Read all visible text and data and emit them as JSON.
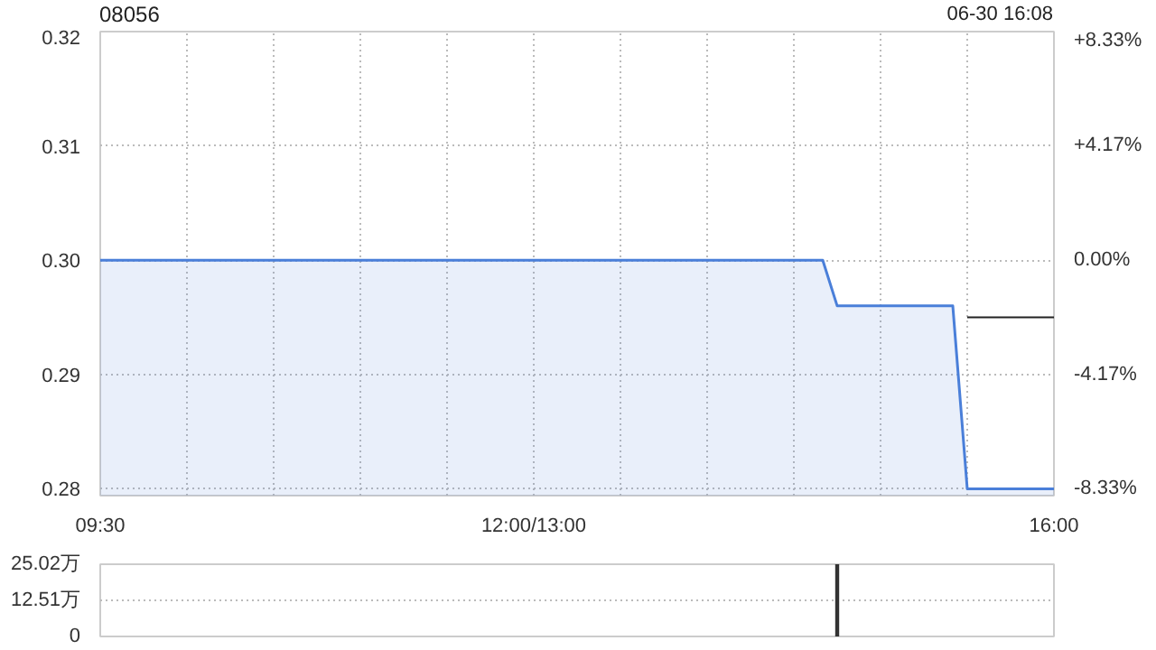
{
  "chart_data": [
    {
      "type": "area",
      "title": "08056",
      "annotations": [
        "06-30 16:08"
      ],
      "categories": [
        "09:30",
        null,
        null,
        null,
        null,
        null,
        null,
        null,
        null,
        null,
        null,
        null,
        null,
        null,
        null,
        null,
        null,
        null,
        null,
        null,
        null,
        null,
        null,
        null,
        null,
        null,
        null,
        null,
        null,
        null,
        "12:00/13:00",
        null,
        null,
        null,
        null,
        null,
        null,
        null,
        null,
        null,
        null,
        null,
        null,
        null,
        null,
        null,
        null,
        null,
        null,
        null,
        null,
        null,
        null,
        null,
        null,
        null,
        null,
        null,
        null,
        null,
        null,
        null,
        null,
        null,
        null,
        null,
        "16:00"
      ],
      "ylim": [
        0.2794,
        0.32
      ],
      "yticks": [
        0.28,
        0.29,
        {
          "value": 0.3,
          "label": "0.30"
        },
        0.31,
        0.32
      ],
      "y2lim": [
        -8.58,
        8.33
      ],
      "y2ticks": [
        {
          "value": 8.33,
          "label": "+8.33%"
        },
        {
          "value": 4.17,
          "label": "+4.17%"
        },
        {
          "value": 0,
          "label": "0.00%"
        },
        {
          "value": -4.17,
          "label": "-4.17%"
        },
        {
          "value": -8.33,
          "label": "-8.33%"
        }
      ],
      "grid": true,
      "series": [
        {
          "color": "#4a7fd9",
          "values": [
            0.3,
            0.3,
            0.3,
            0.3,
            0.3,
            0.3,
            0.3,
            0.3,
            0.3,
            0.3,
            0.3,
            0.3,
            0.3,
            0.3,
            0.3,
            0.3,
            0.3,
            0.3,
            0.3,
            0.3,
            0.3,
            0.3,
            0.3,
            0.3,
            0.3,
            0.3,
            0.3,
            0.3,
            0.3,
            0.3,
            0.3,
            0.3,
            0.3,
            0.3,
            0.3,
            0.3,
            0.3,
            0.3,
            0.3,
            0.3,
            0.3,
            0.3,
            0.3,
            0.3,
            0.3,
            0.3,
            0.3,
            0.3,
            0.3,
            0.3,
            0.3,
            0.296,
            0.296,
            0.296,
            0.296,
            0.296,
            0.296,
            0.296,
            0.296,
            0.296,
            0.28,
            0.28,
            0.28,
            0.28,
            0.28,
            0.28,
            0.28
          ]
        },
        {
          "type": "line",
          "color": "#222222",
          "values": [
            null,
            null,
            null,
            null,
            null,
            null,
            null,
            null,
            null,
            null,
            null,
            null,
            null,
            null,
            null,
            null,
            null,
            null,
            null,
            null,
            null,
            null,
            null,
            null,
            null,
            null,
            null,
            null,
            null,
            null,
            null,
            null,
            null,
            null,
            null,
            null,
            null,
            null,
            null,
            null,
            null,
            null,
            null,
            null,
            null,
            null,
            null,
            null,
            null,
            null,
            null,
            null,
            null,
            null,
            null,
            null,
            null,
            null,
            null,
            null,
            0.295,
            0.295,
            0.295,
            0.295,
            0.295,
            0.295,
            0.295
          ]
        }
      ]
    },
    {
      "type": "bar",
      "categories": [
        null,
        null,
        null,
        null,
        null,
        null,
        null,
        null,
        null,
        null,
        null,
        null,
        null,
        null,
        null,
        null,
        null,
        null,
        null,
        null,
        null,
        null,
        null,
        null,
        null,
        null,
        null,
        null,
        null,
        null,
        null,
        null,
        null,
        null,
        null,
        null,
        null,
        null,
        null,
        null,
        null,
        null,
        null,
        null,
        null,
        null,
        null,
        null,
        null,
        null,
        null,
        null,
        null,
        null,
        null,
        null,
        null,
        null,
        null,
        null,
        null,
        null,
        null,
        null,
        null,
        null,
        null
      ],
      "ylim": [
        0,
        25.02
      ],
      "yticks": [
        {
          "value": 0,
          "label": "0"
        },
        {
          "value": 12.51,
          "label": "12.51万"
        },
        {
          "value": 25.02,
          "label": "25.02万"
        }
      ],
      "grid": "y",
      "series": [
        {
          "color": "#333333",
          "values": [
            null,
            null,
            null,
            null,
            null,
            null,
            null,
            null,
            null,
            null,
            null,
            null,
            null,
            null,
            null,
            null,
            null,
            null,
            null,
            null,
            null,
            null,
            null,
            null,
            null,
            null,
            null,
            null,
            null,
            null,
            null,
            null,
            null,
            null,
            null,
            null,
            null,
            null,
            null,
            null,
            null,
            null,
            null,
            null,
            null,
            null,
            null,
            null,
            null,
            null,
            null,
            25.02,
            null,
            null,
            null,
            null,
            null,
            null,
            null,
            null,
            null,
            null,
            null,
            null,
            null,
            null,
            null
          ]
        }
      ]
    }
  ]
}
